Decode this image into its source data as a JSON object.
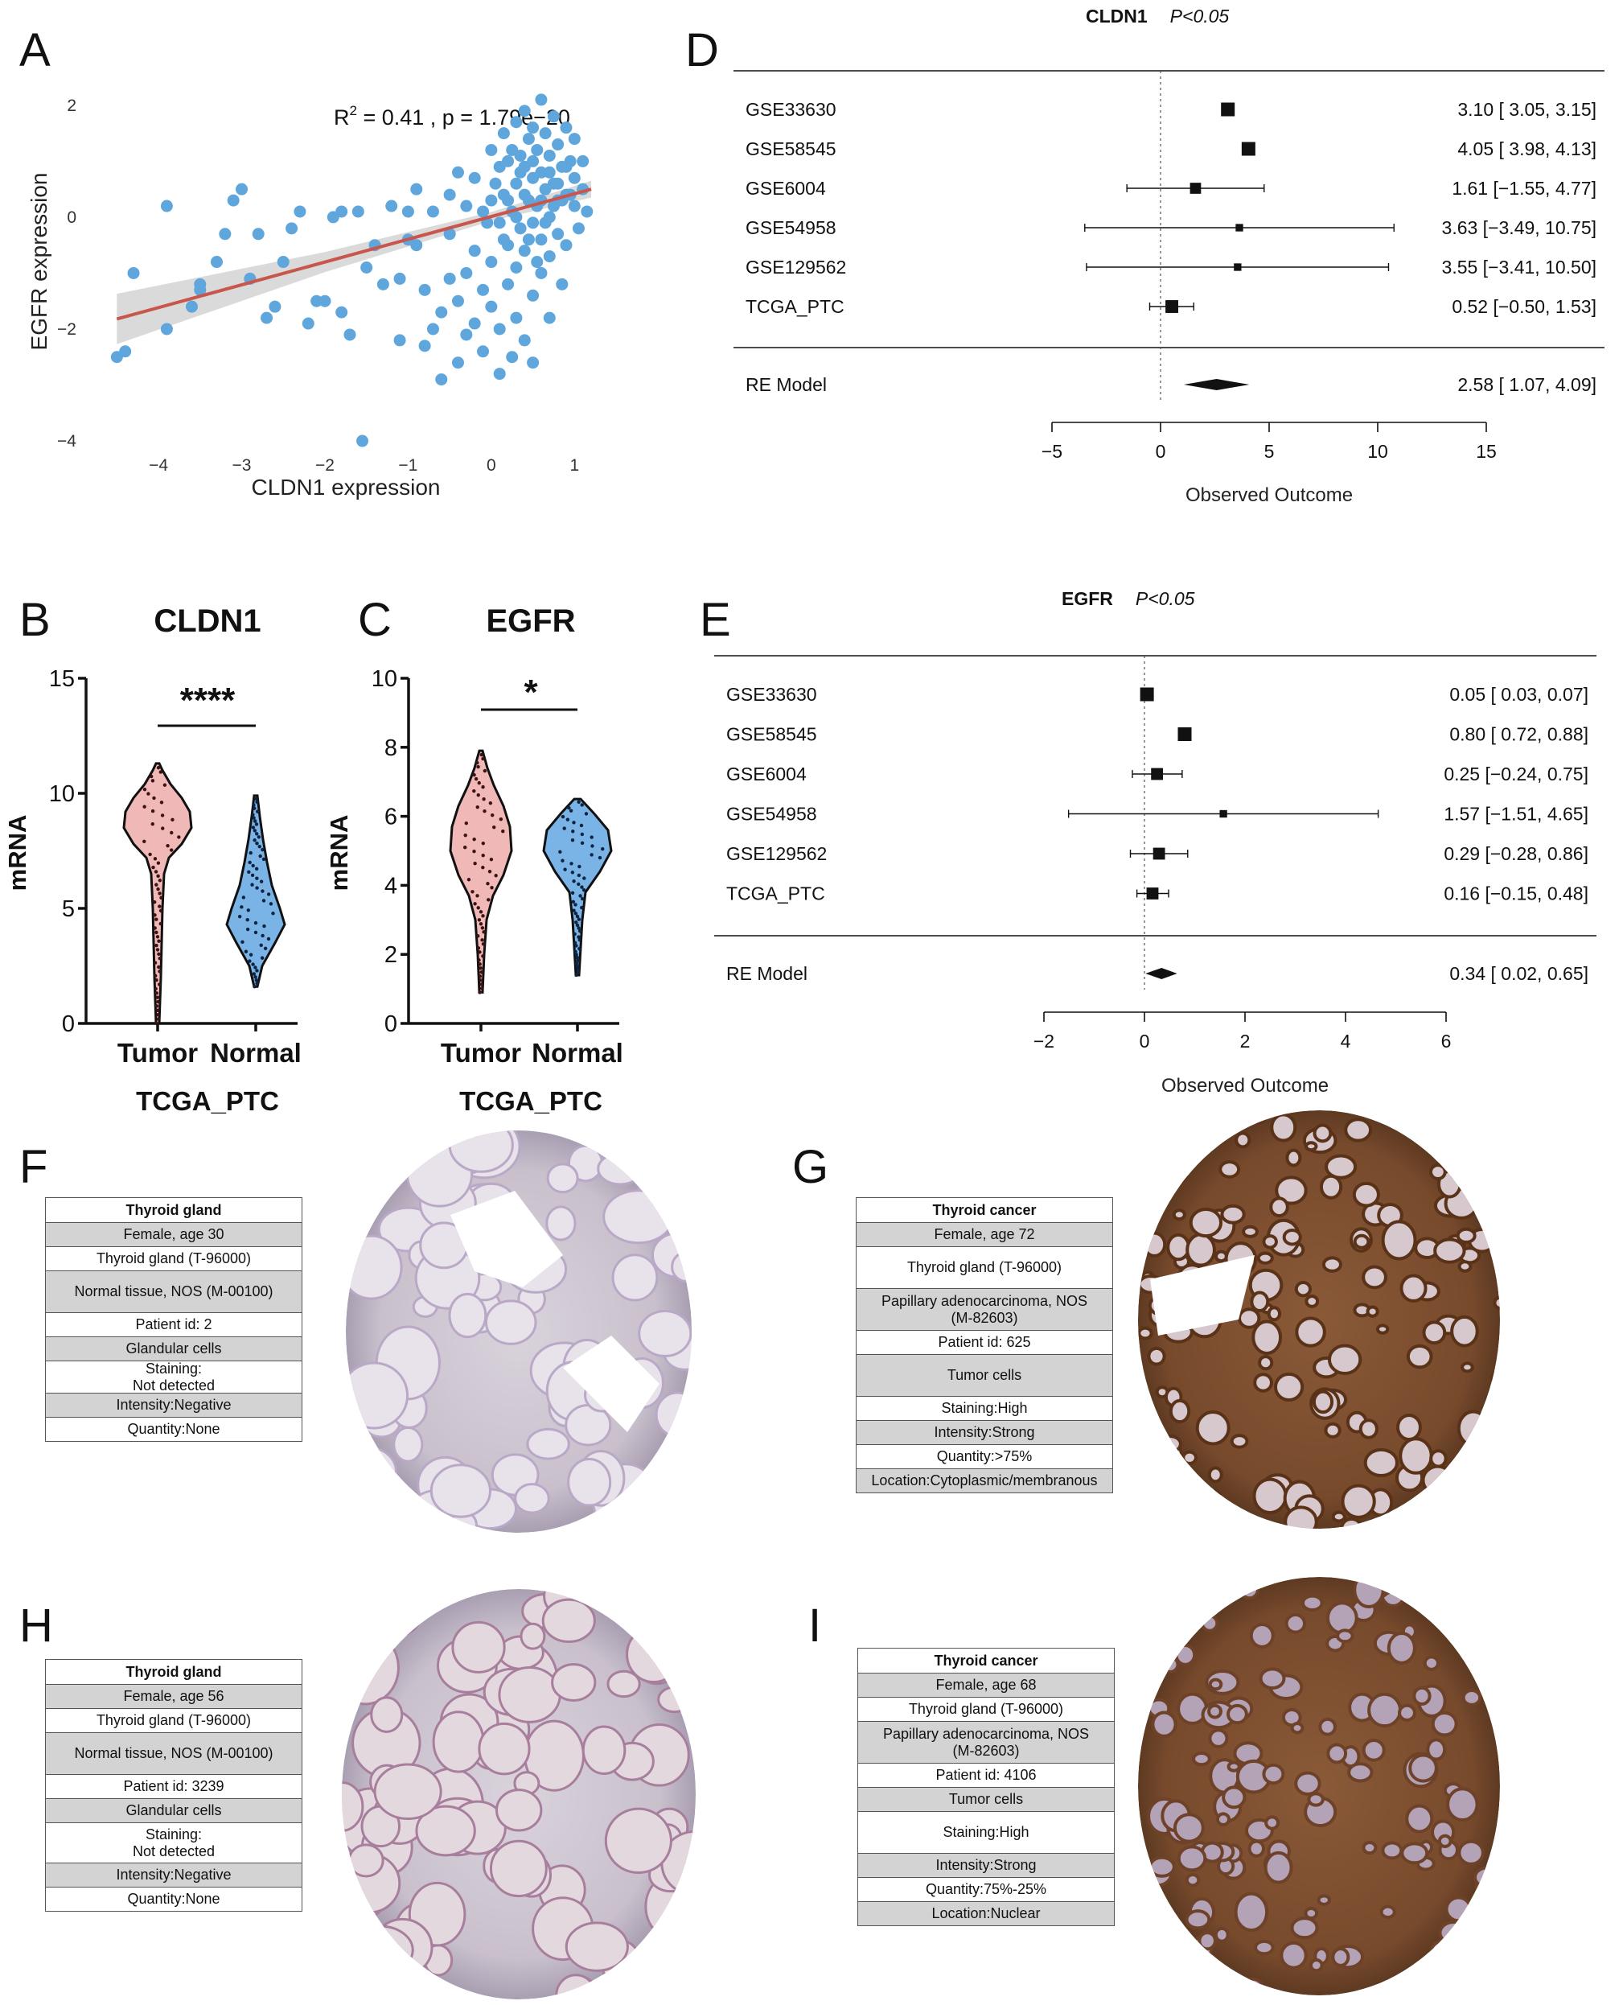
{
  "panel_labels": [
    "A",
    "D",
    "B",
    "C",
    "E",
    "F",
    "G",
    "H",
    "I"
  ],
  "chart_data": [
    {
      "type": "scatter",
      "panel": "A",
      "xlabel": "CLDN1 expression",
      "ylabel": "EGFR expression",
      "annotation_r2": "R",
      "annotation_rest": " = 0.41 , p = 1.79e−20",
      "annotation_sup": "2",
      "xlim": [
        -4.6,
        1.2
      ],
      "ylim": [
        -4.1,
        2.3
      ],
      "xticks": [
        -4,
        -3,
        -2,
        -1,
        0,
        1
      ],
      "yticks": [
        -4,
        -2,
        0,
        2
      ],
      "fit_line": {
        "x": [
          -4.5,
          1.2
        ],
        "y": [
          -1.82,
          0.5
        ],
        "color": "#c9564c"
      },
      "point_color": "#5ea6db",
      "points": [
        [
          -4.5,
          -2.5
        ],
        [
          -4.4,
          -2.4
        ],
        [
          -4.3,
          -1
        ],
        [
          -3.9,
          0.2
        ],
        [
          -3.9,
          -2
        ],
        [
          -3.6,
          -1.6
        ],
        [
          -3.5,
          -1.3
        ],
        [
          -3.5,
          -1.2
        ],
        [
          -3.3,
          -0.8
        ],
        [
          -3.2,
          -0.3
        ],
        [
          -3.1,
          0.3
        ],
        [
          -3.0,
          0.5
        ],
        [
          -2.9,
          -1.1
        ],
        [
          -2.8,
          -0.3
        ],
        [
          -2.7,
          -1.8
        ],
        [
          -2.6,
          -1.6
        ],
        [
          -2.5,
          -0.8
        ],
        [
          -2.4,
          -0.2
        ],
        [
          -2.3,
          0.1
        ],
        [
          -2.2,
          -1.9
        ],
        [
          -2.1,
          -1.5
        ],
        [
          -2.0,
          -1.5
        ],
        [
          -1.9,
          0
        ],
        [
          -1.8,
          0.1
        ],
        [
          -1.8,
          -1.7
        ],
        [
          -1.7,
          -2.1
        ],
        [
          -1.6,
          0.1
        ],
        [
          -1.5,
          -0.9
        ],
        [
          -1.4,
          -0.5
        ],
        [
          -1.3,
          -1.2
        ],
        [
          -1.2,
          0.2
        ],
        [
          -1.1,
          -1.1
        ],
        [
          -1.1,
          -2.2
        ],
        [
          -1.0,
          0.1
        ],
        [
          -1.0,
          -0.4
        ],
        [
          -0.9,
          -0.5
        ],
        [
          -0.9,
          0.5
        ],
        [
          -0.8,
          -1.3
        ],
        [
          -0.8,
          -2.3
        ],
        [
          -0.7,
          0.1
        ],
        [
          -0.7,
          -2
        ],
        [
          -0.6,
          -1.7
        ],
        [
          -0.6,
          -2.9
        ],
        [
          -0.5,
          0.4
        ],
        [
          -0.5,
          -0.3
        ],
        [
          -0.5,
          -1.1
        ],
        [
          -0.4,
          0.8
        ],
        [
          -0.4,
          -1.5
        ],
        [
          -0.4,
          -2.6
        ],
        [
          -0.3,
          0.2
        ],
        [
          -0.3,
          -1
        ],
        [
          -0.3,
          -2.1
        ],
        [
          -0.2,
          0.7
        ],
        [
          -0.2,
          -0.6
        ],
        [
          -0.2,
          -1.9
        ],
        [
          -0.1,
          0.1
        ],
        [
          -0.1,
          -1.3
        ],
        [
          -0.1,
          -2.4
        ],
        [
          0,
          0.3
        ],
        [
          0,
          -0.8
        ],
        [
          0,
          1.2
        ],
        [
          0,
          -1.6
        ],
        [
          0.1,
          0.9
        ],
        [
          0.1,
          -0.1
        ],
        [
          0.1,
          -2
        ],
        [
          0.1,
          -2.8
        ],
        [
          0.15,
          1.5
        ],
        [
          0.15,
          0.4
        ],
        [
          0.2,
          -0.5
        ],
        [
          0.2,
          -1.2
        ],
        [
          0.2,
          1
        ],
        [
          0.25,
          0.1
        ],
        [
          0.25,
          -2.5
        ],
        [
          0.3,
          1.7
        ],
        [
          0.3,
          0.6
        ],
        [
          0.3,
          -0.9
        ],
        [
          0.3,
          -1.8
        ],
        [
          0.35,
          1.1
        ],
        [
          0.35,
          -0.2
        ],
        [
          0.4,
          0.9
        ],
        [
          0.4,
          1.9
        ],
        [
          0.4,
          -0.6
        ],
        [
          0.4,
          -2.2
        ],
        [
          0.45,
          0.3
        ],
        [
          0.45,
          1.4
        ],
        [
          0.5,
          -0.1
        ],
        [
          0.5,
          0.7
        ],
        [
          0.5,
          1.6
        ],
        [
          0.5,
          -1.4
        ],
        [
          0.5,
          -2.6
        ],
        [
          0.55,
          0.2
        ],
        [
          0.55,
          1.2
        ],
        [
          0.6,
          -0.4
        ],
        [
          0.6,
          0.8
        ],
        [
          0.6,
          2.1
        ],
        [
          0.6,
          -1
        ],
        [
          0.65,
          0.5
        ],
        [
          0.65,
          1.5
        ],
        [
          0.7,
          0
        ],
        [
          0.7,
          1.1
        ],
        [
          0.7,
          -0.7
        ],
        [
          0.7,
          -1.8
        ],
        [
          0.75,
          0.6
        ],
        [
          0.75,
          1.8
        ],
        [
          0.8,
          0.3
        ],
        [
          0.8,
          1.3
        ],
        [
          0.8,
          -0.3
        ],
        [
          0.85,
          0.9
        ],
        [
          0.85,
          -1.2
        ],
        [
          0.9,
          0.4
        ],
        [
          0.9,
          1.6
        ],
        [
          0.9,
          -0.5
        ],
        [
          0.95,
          1
        ],
        [
          1.0,
          0.2
        ],
        [
          1.0,
          0.7
        ],
        [
          1.0,
          1.4
        ],
        [
          1.05,
          -0.2
        ],
        [
          1.1,
          0.5
        ],
        [
          1.1,
          1
        ],
        [
          1.15,
          0.1
        ],
        [
          0.3,
          0
        ],
        [
          0.4,
          0.4
        ],
        [
          0.2,
          0.3
        ],
        [
          0.6,
          0.3
        ],
        [
          0.5,
          1
        ],
        [
          0.7,
          0.8
        ],
        [
          0.8,
          0.6
        ],
        [
          0.9,
          0.9
        ],
        [
          0.35,
          0.8
        ],
        [
          0.45,
          -0.4
        ],
        [
          0.55,
          -0.8
        ],
        [
          0.65,
          -0.1
        ],
        [
          0.75,
          0.2
        ],
        [
          0.85,
          0.3
        ],
        [
          0.95,
          0.4
        ],
        [
          0.25,
          1.2
        ],
        [
          0.15,
          -0.4
        ],
        [
          0.05,
          0.6
        ],
        [
          -0.05,
          -0.1
        ],
        [
          -1.55,
          -4
        ]
      ]
    },
    {
      "type": "forest",
      "panel": "D",
      "gene": "CLDN1",
      "p_text": "P<0.05",
      "xlabel": "Observed Outcome",
      "xlim": [
        -5,
        15
      ],
      "xticks": [
        "−5",
        "0",
        "5",
        "10",
        "15"
      ],
      "xtick_values": [
        -5,
        0,
        5,
        10,
        15
      ],
      "studies": [
        {
          "name": "GSE33630",
          "est": 3.1,
          "lo": 3.05,
          "hi": 3.15,
          "text": "3.10 [ 3.05,  3.15]",
          "w": 1.0
        },
        {
          "name": "GSE58545",
          "est": 4.05,
          "lo": 3.98,
          "hi": 4.13,
          "text": "4.05 [ 3.98,  4.13]",
          "w": 1.0
        },
        {
          "name": "GSE6004",
          "est": 1.61,
          "lo": -1.55,
          "hi": 4.77,
          "text": "1.61 [−1.55,  4.77]",
          "w": 0.7
        },
        {
          "name": "GSE54958",
          "est": 3.63,
          "lo": -3.49,
          "hi": 10.75,
          "text": "3.63 [−3.49, 10.75]",
          "w": 0.3
        },
        {
          "name": "GSE129562",
          "est": 3.55,
          "lo": -3.41,
          "hi": 10.5,
          "text": "3.55 [−3.41, 10.50]",
          "w": 0.3
        },
        {
          "name": "TCGA_PTC",
          "est": 0.52,
          "lo": -0.5,
          "hi": 1.53,
          "text": "0.52 [−0.50,  1.53]",
          "w": 0.9
        }
      ],
      "summary": {
        "name": "RE Model",
        "est": 2.58,
        "lo": 1.07,
        "hi": 4.09,
        "text": "2.58 [ 1.07,  4.09]"
      }
    },
    {
      "type": "violin",
      "panel": "B",
      "title": "CLDN1",
      "ylabel": "mRNA",
      "xlabel": "TCGA_PTC",
      "categories": [
        "Tumor",
        "Normal"
      ],
      "ylim": [
        0,
        15
      ],
      "yticks": [
        0,
        5,
        10,
        15
      ],
      "significance": "****",
      "colors": [
        "#f0b8b6",
        "#7ab3e6"
      ]
    },
    {
      "type": "violin",
      "panel": "C",
      "title": "EGFR",
      "ylabel": "mRNA",
      "xlabel": "TCGA_PTC",
      "categories": [
        "Tumor",
        "Normal"
      ],
      "ylim": [
        0,
        10
      ],
      "yticks": [
        0,
        2,
        4,
        6,
        8,
        10
      ],
      "significance": "*",
      "colors": [
        "#f0b8b6",
        "#7ab3e6"
      ]
    },
    {
      "type": "forest",
      "panel": "E",
      "gene": "EGFR",
      "p_text": "P<0.05",
      "xlabel": "Observed Outcome",
      "xlim": [
        -2,
        6
      ],
      "xticks": [
        "−2",
        "0",
        "2",
        "4",
        "6"
      ],
      "xtick_values": [
        -2,
        0,
        2,
        4,
        6
      ],
      "studies": [
        {
          "name": "GSE33630",
          "est": 0.05,
          "lo": 0.03,
          "hi": 0.07,
          "text": "0.05 [ 0.03, 0.07]",
          "w": 1.0
        },
        {
          "name": "GSE58545",
          "est": 0.8,
          "lo": 0.72,
          "hi": 0.88,
          "text": "0.80 [ 0.72, 0.88]",
          "w": 1.0
        },
        {
          "name": "GSE6004",
          "est": 0.25,
          "lo": -0.24,
          "hi": 0.75,
          "text": "0.25 [−0.24, 0.75]",
          "w": 0.8
        },
        {
          "name": "GSE54958",
          "est": 1.57,
          "lo": -1.51,
          "hi": 4.65,
          "text": "1.57 [−1.51, 4.65]",
          "w": 0.3
        },
        {
          "name": "GSE129562",
          "est": 0.29,
          "lo": -0.28,
          "hi": 0.86,
          "text": "0.29 [−0.28, 0.86]",
          "w": 0.8
        },
        {
          "name": "TCGA_PTC",
          "est": 0.16,
          "lo": -0.15,
          "hi": 0.48,
          "text": "0.16 [−0.15, 0.48]",
          "w": 0.8
        }
      ],
      "summary": {
        "name": "RE Model",
        "est": 0.34,
        "lo": 0.02,
        "hi": 0.65,
        "text": "0.34 [ 0.02, 0.65]"
      }
    }
  ],
  "ihc_panels": [
    {
      "panel": "F",
      "rows": [
        "Thyroid gland",
        "Female, age 30",
        "Thyroid gland (T-96000)",
        "Normal tissue, NOS (M-00100)",
        "Patient id: 2",
        "Glandular cells",
        "Staining:\nNot detected",
        "Intensity:Negative",
        "Quantity:None"
      ],
      "stain": "negative"
    },
    {
      "panel": "G",
      "rows": [
        "Thyroid cancer",
        "Female, age 72",
        "Thyroid gland (T-96000)",
        "Papillary adenocarcinoma, NOS\n(M-82603)",
        "Patient id: 625",
        "Tumor cells",
        "Staining:High",
        "Intensity:Strong",
        "Quantity:>75%",
        "Location:Cytoplasmic/membranous"
      ],
      "stain": "high"
    },
    {
      "panel": "H",
      "rows": [
        "Thyroid gland",
        "Female, age 56",
        "Thyroid gland (T-96000)",
        "Normal tissue, NOS (M-00100)",
        "Patient id: 3239",
        "Glandular cells",
        "Staining:\nNot detected",
        "Intensity:Negative",
        "Quantity:None"
      ],
      "stain": "negative"
    },
    {
      "panel": "I",
      "rows": [
        "Thyroid cancer",
        "Female, age 68",
        "Thyroid gland (T-96000)",
        "Papillary adenocarcinoma, NOS\n(M-82603)",
        "Patient id: 4106",
        "Tumor cells",
        "Staining:High",
        "Intensity:Strong",
        "Quantity:75%-25%",
        "Location:Nuclear"
      ],
      "stain": "high"
    }
  ]
}
